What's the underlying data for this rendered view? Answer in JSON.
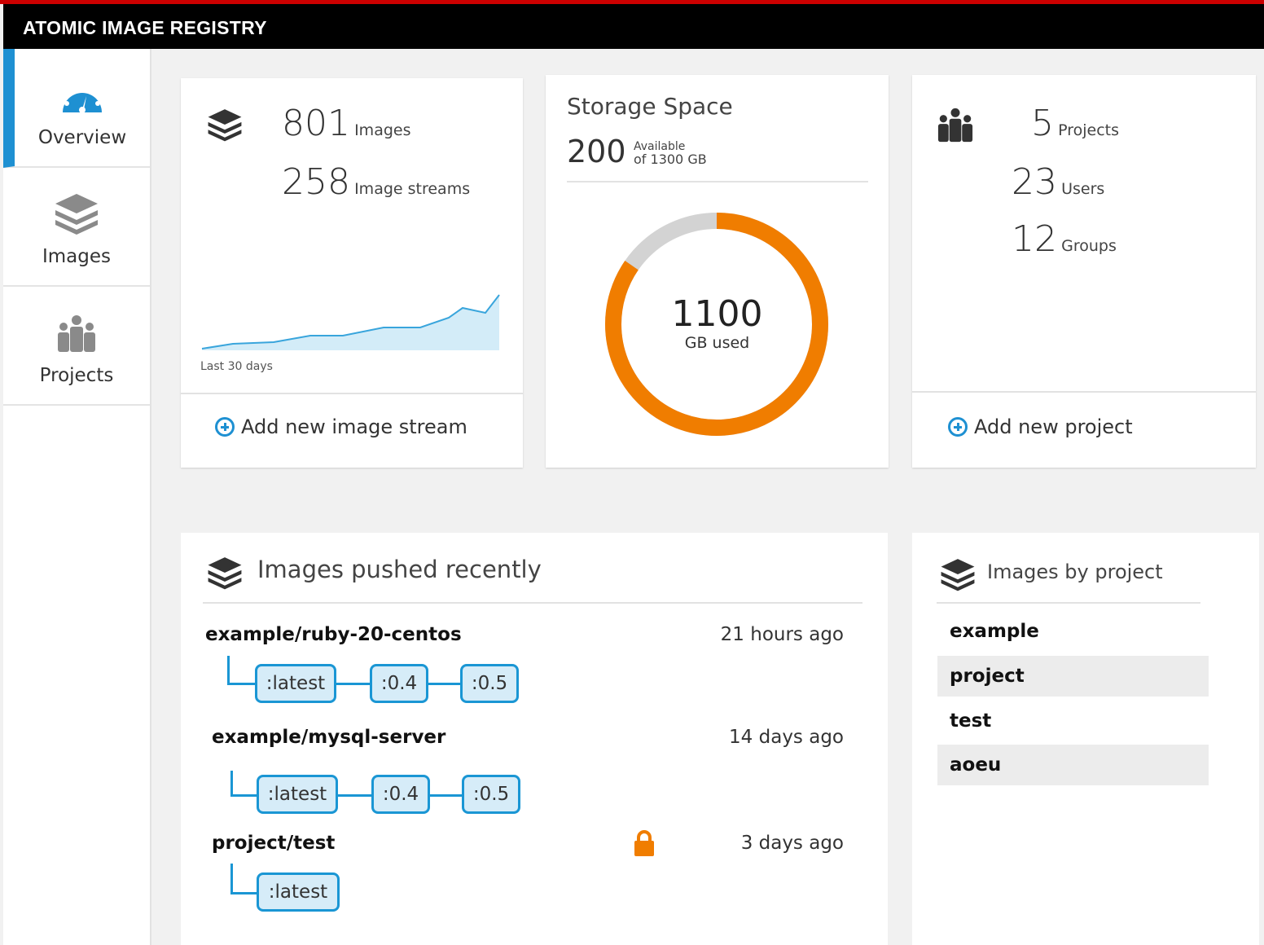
{
  "app": {
    "title": "ATOMIC IMAGE REGISTRY"
  },
  "sidebar": {
    "items": [
      {
        "label": "Overview",
        "icon": "dashboard-icon",
        "active": true
      },
      {
        "label": "Images",
        "icon": "layers-icon",
        "active": false
      },
      {
        "label": "Projects",
        "icon": "users-icon",
        "active": false
      }
    ]
  },
  "images_card": {
    "images_count": "801",
    "images_label": "Images",
    "streams_count": "258",
    "streams_label": "Image streams",
    "sparkline_caption": "Last 30 days",
    "add_label": "Add new image stream"
  },
  "storage_card": {
    "title": "Storage Space",
    "available": "200",
    "available_label": "Available",
    "of_total": "of 1300 GB",
    "used": "1100",
    "used_label": "GB used",
    "used_fraction": 0.846
  },
  "projects_card": {
    "projects_count": "5",
    "projects_label": "Projects",
    "users_count": "23",
    "users_label": "Users",
    "groups_count": "12",
    "groups_label": "Groups",
    "add_label": "Add new project"
  },
  "recent": {
    "title": "Images pushed recently",
    "items": [
      {
        "name": "example/ruby-20-centos",
        "when": "21 hours ago",
        "tags": [
          ":latest",
          ":0.4",
          ":0.5"
        ],
        "locked": false
      },
      {
        "name": "example/mysql-server",
        "when": "14 days ago",
        "tags": [
          ":latest",
          ":0.4",
          ":0.5"
        ],
        "locked": false
      },
      {
        "name": "project/test",
        "when": "3 days ago",
        "tags": [
          ":latest"
        ],
        "locked": true
      }
    ]
  },
  "by_project": {
    "title": "Images by project",
    "items": [
      "example",
      "project",
      "test",
      "aoeu"
    ]
  },
  "colors": {
    "accent": "#1e90d2",
    "orange": "#f07d00",
    "topline": "#cc0000"
  }
}
